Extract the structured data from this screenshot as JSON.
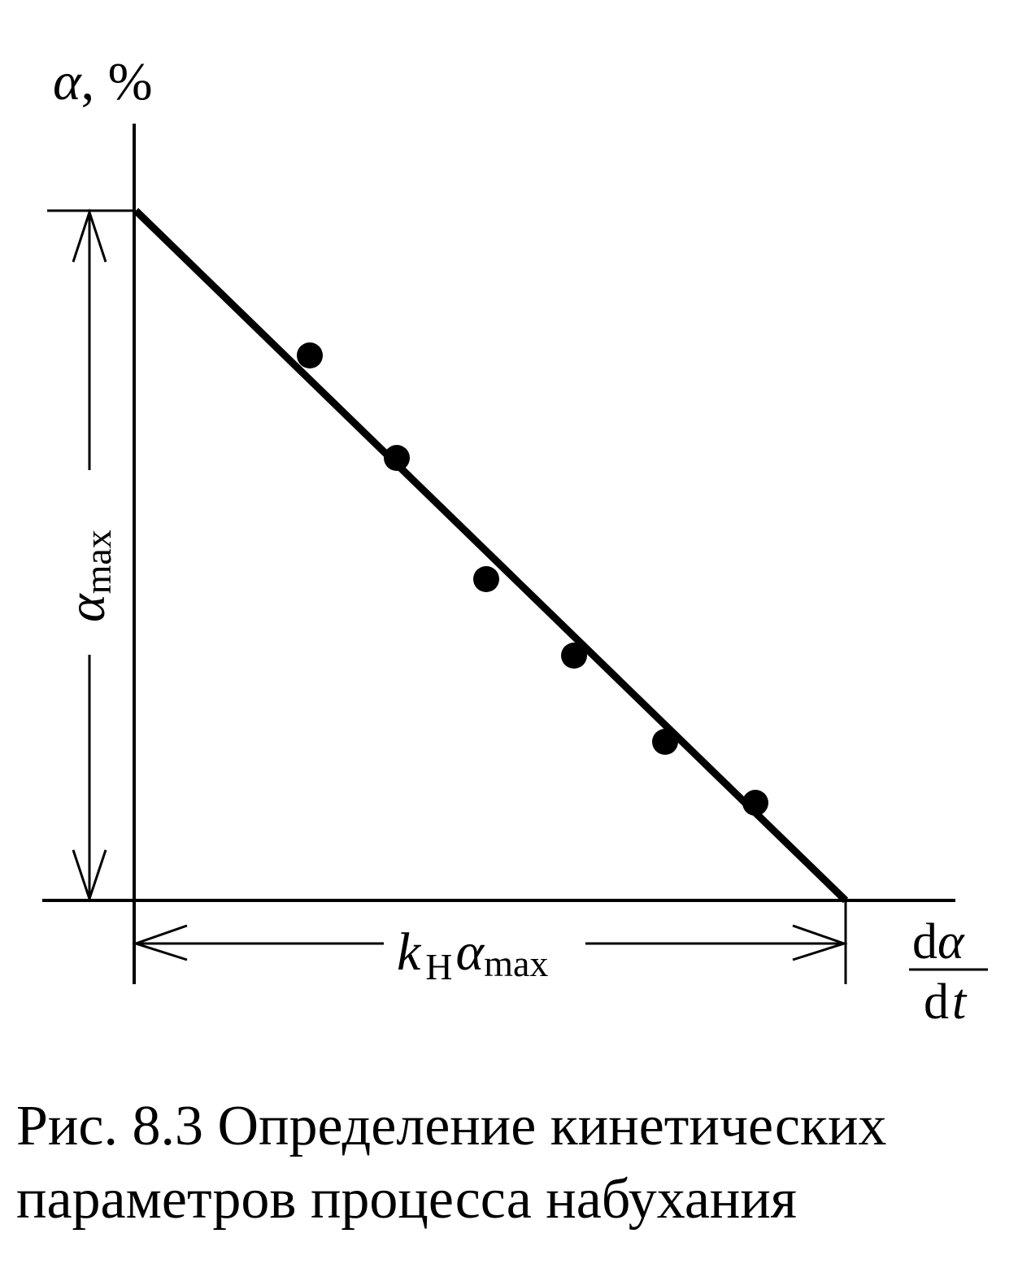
{
  "y_axis_label": {
    "symbol": "α",
    "unit": ", %"
  },
  "height_label": {
    "symbol": "α",
    "subscript": "max"
  },
  "width_label": {
    "coefficient": "k",
    "coefficient_subscript": "Н",
    "symbol": "α",
    "subscript": "max"
  },
  "x_axis_label": {
    "numerator_d": "d",
    "numerator_symbol": "α",
    "denominator_d": "d",
    "denominator_symbol": "t"
  },
  "caption": [
    "Рис. 8.3 Определение кинетических",
    "параметров процесса набухания"
  ]
}
